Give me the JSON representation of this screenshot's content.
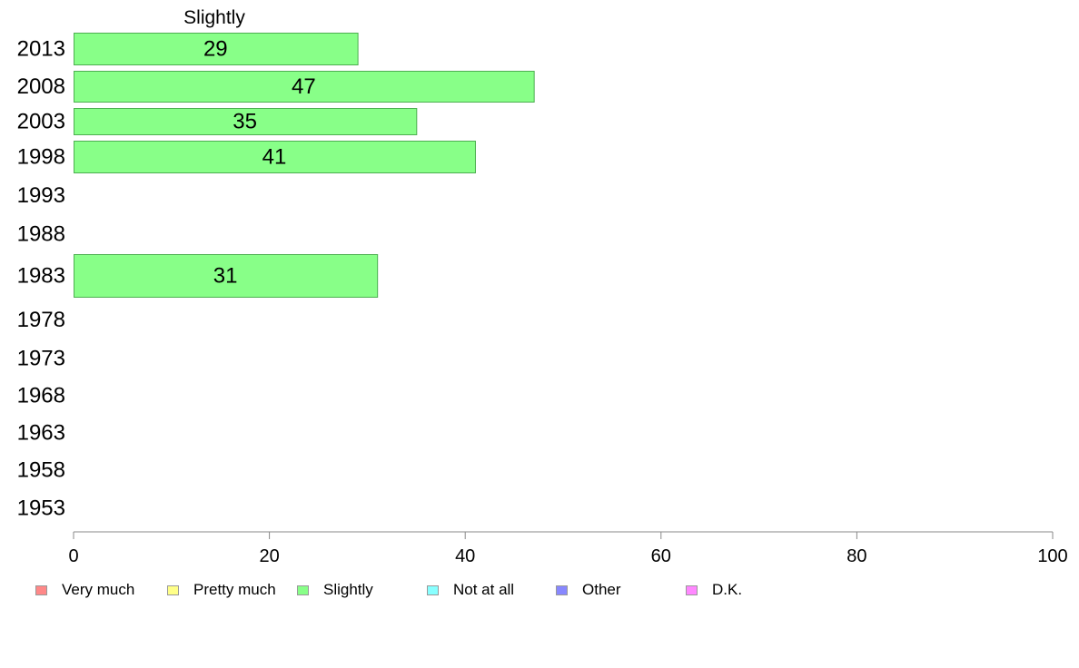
{
  "chart_data": {
    "type": "bar",
    "orientation": "horizontal",
    "title": "Slightly",
    "categories": [
      "2013",
      "2008",
      "2003",
      "1998",
      "1993",
      "1988",
      "1983",
      "1978",
      "1973",
      "1968",
      "1963",
      "1958",
      "1953"
    ],
    "series": [
      {
        "name": "Slightly",
        "color": "#88ff88",
        "values": [
          29,
          47,
          35,
          41,
          null,
          null,
          31,
          null,
          null,
          null,
          null,
          null,
          null
        ]
      }
    ],
    "xlim": [
      0,
      100
    ],
    "xticks": [
      0,
      20,
      40,
      60,
      80,
      100
    ],
    "xlabel": "",
    "ylabel": "",
    "grid": false,
    "legend_position": "bottom",
    "legend": [
      {
        "label": "Very much",
        "color": "#ff8888"
      },
      {
        "label": "Pretty much",
        "color": "#ffff88"
      },
      {
        "label": "Slightly",
        "color": "#88ff88"
      },
      {
        "label": "Not at all",
        "color": "#88ffff"
      },
      {
        "label": "Other",
        "color": "#8888ff"
      },
      {
        "label": "D.K.",
        "color": "#ff88ff"
      }
    ]
  }
}
